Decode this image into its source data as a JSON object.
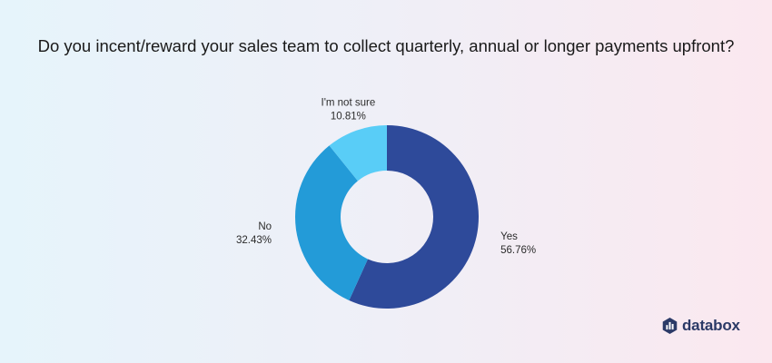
{
  "title": "Do you incent/reward your sales team to collect quarterly, annual or longer payments upfront?",
  "brand": {
    "name": "databox",
    "icon": "databox-logo-icon",
    "color": "#2b3a67"
  },
  "chart_data": {
    "type": "pie",
    "variant": "donut",
    "title": "Do you incent/reward your sales team to collect quarterly, annual or longer payments upfront?",
    "slices": [
      {
        "label": "Yes",
        "value": 56.76,
        "value_label": "56.76%",
        "color": "#2e4a9a"
      },
      {
        "label": "No",
        "value": 32.43,
        "value_label": "32.43%",
        "color": "#239bd8"
      },
      {
        "label": "I'm not sure",
        "value": 10.81,
        "value_label": "10.81%",
        "color": "#59cdf7"
      }
    ],
    "start_angle": "top",
    "direction": "clockwise",
    "legend": "none"
  }
}
